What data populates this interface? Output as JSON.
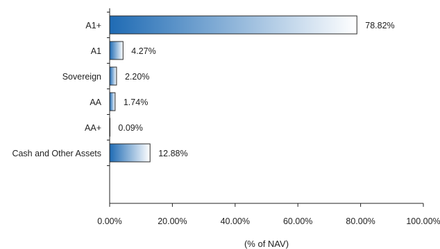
{
  "chart_data": {
    "type": "bar",
    "orientation": "horizontal",
    "categories": [
      "A1+",
      "A1",
      "Sovereign",
      "AA",
      "AA+",
      "Cash and Other Assets"
    ],
    "values": [
      78.82,
      4.27,
      2.2,
      1.74,
      0.09,
      12.88
    ],
    "value_labels": [
      "78.82%",
      "4.27%",
      "2.20%",
      "1.74%",
      "0.09%",
      "12.88%"
    ],
    "x_ticks": [
      "0.00%",
      "20.00%",
      "40.00%",
      "60.00%",
      "80.00%",
      "100.00%"
    ],
    "xlim": [
      0,
      100
    ],
    "xlabel": "(% of NAV)",
    "ylabel": "",
    "title": "",
    "grid": false,
    "colors": {
      "bar_dark": "#1f6bb4",
      "bar_light": "#ffffff",
      "bar_border": "#2a2a2a",
      "axis": "#222222"
    }
  }
}
